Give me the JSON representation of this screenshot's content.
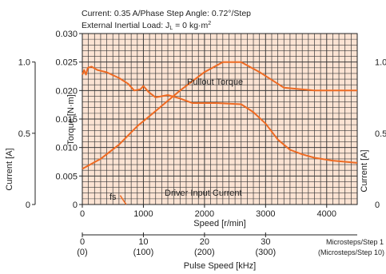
{
  "header": {
    "line1": "Current: 0.35 A/Phase  Step Angle: 0.72°/Step",
    "line2_prefix": "External Inertial Load: J",
    "line2_sub": "L",
    "line2_mid": " = 0 kg·m",
    "line2_sup": "2"
  },
  "colors": {
    "plot_bg": "#fbe3d3",
    "grid": "#3a3a3a",
    "curve": "#ee6a22",
    "axis": "#222222"
  },
  "chart_data": {
    "type": "line",
    "x_label": "Speed [r/min]",
    "x_ticks": [
      0,
      1000,
      2000,
      3000,
      4000
    ],
    "x_range": [
      0,
      4500
    ],
    "y_label": "Torque [N·m]",
    "y_ticks": [
      "0",
      "0.005",
      "0.010",
      "0.015",
      "0.020",
      "0.025",
      "0.030"
    ],
    "y_range": [
      0,
      0.03
    ],
    "current_axis_label": "Current [A]",
    "current_ticks": [
      "0",
      "0.5",
      "1.0"
    ],
    "current_range": [
      0,
      1.2
    ],
    "series": [
      {
        "name": "Pullout Torque",
        "axis": "torque",
        "points": [
          [
            0,
            0.0228
          ],
          [
            30,
            0.0236
          ],
          [
            60,
            0.0228
          ],
          [
            90,
            0.024
          ],
          [
            150,
            0.0242
          ],
          [
            250,
            0.0236
          ],
          [
            400,
            0.0232
          ],
          [
            600,
            0.0222
          ],
          [
            750,
            0.0212
          ],
          [
            850,
            0.02
          ],
          [
            950,
            0.0202
          ],
          [
            1000,
            0.0208
          ],
          [
            1080,
            0.0198
          ],
          [
            1200,
            0.0188
          ],
          [
            1400,
            0.0192
          ],
          [
            1600,
            0.0186
          ],
          [
            1800,
            0.0178
          ],
          [
            2200,
            0.0178
          ],
          [
            2600,
            0.0176
          ],
          [
            2800,
            0.0162
          ],
          [
            3000,
            0.0142
          ],
          [
            3200,
            0.0114
          ],
          [
            3400,
            0.0096
          ],
          [
            3600,
            0.0088
          ],
          [
            3800,
            0.0082
          ],
          [
            4100,
            0.0077
          ],
          [
            4500,
            0.0073
          ]
        ]
      },
      {
        "name": "Driver Input Current",
        "axis": "current",
        "points": [
          [
            0,
            0.25
          ],
          [
            300,
            0.32
          ],
          [
            600,
            0.42
          ],
          [
            900,
            0.55
          ],
          [
            1100,
            0.62
          ],
          [
            1600,
            0.8
          ],
          [
            2000,
            0.93
          ],
          [
            2300,
            1.0
          ],
          [
            2600,
            1.0
          ],
          [
            2900,
            0.93
          ],
          [
            3300,
            0.82
          ],
          [
            3800,
            0.8
          ],
          [
            4500,
            0.8
          ]
        ]
      },
      {
        "name": "fs",
        "axis": "torque",
        "points": [
          [
            620,
            0.0016
          ],
          [
            680,
            0.0006
          ],
          [
            720,
            0.0
          ]
        ]
      }
    ]
  },
  "right_axis_fragment": {
    "label": "Current [A]",
    "ticks": [
      "0",
      "0.5",
      "1.0"
    ]
  },
  "pulse_axis": {
    "label": "Pulse Speed [kHz]",
    "ticks": [
      {
        "khz": 0,
        "full": "(0)"
      },
      {
        "khz": 10,
        "full": "(100)"
      },
      {
        "khz": 20,
        "full": "(200)"
      },
      {
        "khz": 30,
        "full": "(300)"
      }
    ],
    "row1_label": "Microsteps/Step 1",
    "row2_label": "(Microsteps/Step 10)"
  }
}
